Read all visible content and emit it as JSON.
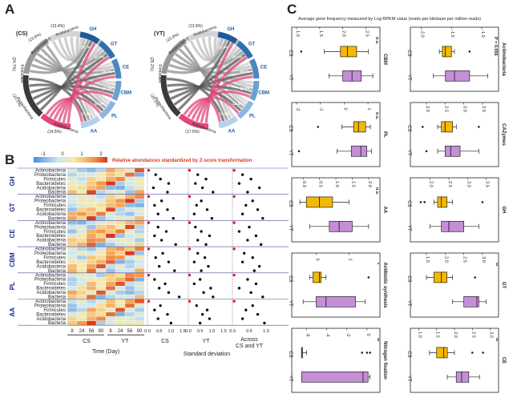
{
  "panels": {
    "a": "A",
    "b": "B",
    "c": "C"
  },
  "panel_a": {
    "left": {
      "label": "(CS)",
      "outer_labels": [
        {
          "text": "(13.4%)"
        },
        {
          "text": "Acidobacteria"
        },
        {
          "text": "(23.8%)"
        },
        {
          "text": "Bacteroidetes"
        },
        {
          "text": "(24.7%)"
        },
        {
          "text": "Firmicutes"
        },
        {
          "text": "(22.5%)"
        },
        {
          "text": "Proteobacteria"
        },
        {
          "text": "(14.5%)"
        },
        {
          "text": "Actinobacteria"
        }
      ],
      "right_labels": [
        "GH",
        "GT",
        "CE",
        "CBM",
        "PL",
        "AA"
      ],
      "chord_pcts": [
        "19.7%",
        "12.9%",
        "19.5%",
        "18.3%",
        "14.0%",
        "17.0%"
      ]
    },
    "right": {
      "label": "(YT)",
      "outer_labels": [
        {
          "text": "(13.9%)"
        },
        {
          "text": "Acidobacteria"
        },
        {
          "text": "(22.8%)"
        },
        {
          "text": "Bacteroidetes"
        },
        {
          "text": "(25.2%)"
        },
        {
          "text": "Firmicutes"
        },
        {
          "text": "(20.5%)"
        },
        {
          "text": "Proteobacteria"
        },
        {
          "text": "(17.5%)"
        },
        {
          "text": "Actinobacteria"
        }
      ],
      "right_labels": [
        "GH",
        "GT",
        "CE",
        "CBM",
        "PL",
        "AA"
      ],
      "chord_pcts": [
        "21.0%",
        "15.1%",
        "18.6%",
        "16.0%",
        "12.4%",
        "14.3%"
      ]
    }
  },
  "panel_b": {
    "legend_title": "Relative abundances standardized by Z-score transformation",
    "legend_ticks": [
      "-1",
      "0",
      "1",
      "2"
    ],
    "groups": [
      "GH",
      "GT",
      "CE",
      "CBM",
      "PL",
      "AA"
    ],
    "taxa": [
      "Actinobacteria",
      "Proteobacteria",
      "Firmicutes",
      "Bacteroidetes",
      "Acidobacteria",
      "Bacteria"
    ],
    "day_ticks": [
      "8",
      "24",
      "56",
      "90",
      "8",
      "24",
      "56",
      "90"
    ],
    "condition_labels": [
      "CS",
      "YT"
    ],
    "time_axis_label": "Time (Day)",
    "sd_column_labels": [
      "CS",
      "YT",
      "Across\nCS and YT"
    ],
    "sd_ticks": [
      [
        "0.0",
        "0.5",
        "1.0",
        "1.5"
      ],
      [
        "0.0",
        "0.5",
        "1.0",
        "1.5"
      ],
      [
        "0.0",
        "0.5",
        "1.0"
      ]
    ],
    "sd_axis_label": "Standard deviation",
    "heatmap_z": [
      [
        0.2,
        -0.3,
        -0.5,
        -0.2,
        1.2,
        0.8,
        0.4,
        1.8
      ],
      [
        -0.6,
        -0.2,
        0.2,
        0.1,
        0.6,
        0.9,
        0.7,
        1.6
      ],
      [
        0.1,
        0.4,
        0.3,
        -0.1,
        0.8,
        0.5,
        1.1,
        1.4
      ],
      [
        -0.3,
        0.2,
        0.5,
        0.4,
        0.2,
        0.9,
        1.3,
        2.0
      ],
      [
        -0.5,
        -0.6,
        -0.1,
        0.3,
        0.5,
        0.7,
        1.0,
        1.2
      ],
      [
        -0.2,
        0.1,
        0.3,
        -0.4,
        0.8,
        1.0,
        0.6,
        1.9
      ],
      [
        0.3,
        -0.2,
        -0.4,
        0.1,
        1.1,
        1.3,
        0.9,
        1.5
      ],
      [
        -0.4,
        0.0,
        0.4,
        0.2,
        0.6,
        1.2,
        0.8,
        2.1
      ],
      [
        0.1,
        0.5,
        0.2,
        -0.3,
        0.9,
        0.7,
        1.4,
        1.3
      ],
      [
        -0.6,
        -0.3,
        0.0,
        0.5,
        0.4,
        0.8,
        1.1,
        1.7
      ],
      [
        -0.1,
        0.3,
        -0.2,
        0.2,
        1.0,
        0.6,
        1.2,
        1.8
      ],
      [
        0.2,
        -0.4,
        0.1,
        0.0,
        0.7,
        1.1,
        0.5,
        1.6
      ]
    ],
    "sd_points": [
      [
        [
          0.05,
          0.35,
          0.55,
          0.9,
          0.25,
          0.85
        ],
        [
          0.05,
          0.4,
          0.75,
          0.3,
          0.6,
          1.05
        ],
        [
          0.05,
          0.3,
          0.55,
          0.2,
          0.8,
          0.45
        ]
      ],
      [
        [
          0.05,
          0.6,
          0.3,
          0.85,
          0.45,
          1.1
        ],
        [
          0.05,
          0.55,
          0.35,
          0.8,
          0.25,
          1.0
        ],
        [
          0.05,
          0.6,
          0.4,
          0.75,
          0.3,
          0.9
        ]
      ],
      [
        [
          0.05,
          0.45,
          0.8,
          0.3,
          0.6,
          1.2
        ],
        [
          0.05,
          0.3,
          0.55,
          0.9,
          0.4,
          0.75
        ],
        [
          0.05,
          0.5,
          0.2,
          0.7,
          0.45,
          0.85
        ]
      ],
      [
        [
          0.05,
          0.65,
          0.35,
          0.9,
          0.5,
          1.15
        ],
        [
          0.05,
          0.4,
          0.7,
          0.25,
          0.85,
          0.55
        ],
        [
          0.05,
          0.35,
          0.6,
          0.3,
          0.8,
          0.65
        ]
      ],
      [
        [
          0.05,
          0.3,
          0.75,
          0.5,
          0.9,
          1.35
        ],
        [
          0.05,
          0.5,
          0.25,
          0.95,
          0.65,
          1.05
        ],
        [
          0.05,
          0.45,
          0.7,
          0.2,
          0.55,
          0.9
        ]
      ],
      [
        [
          0.05,
          0.55,
          0.3,
          0.85,
          0.45,
          1.0
        ],
        [
          0.05,
          0.35,
          0.8,
          0.6,
          0.9,
          0.5
        ],
        [
          0.05,
          0.6,
          0.4,
          0.75,
          0.3,
          0.95
        ]
      ]
    ]
  },
  "panel_c": {
    "title": "Average gene frequency measured by Log RPKM value (reads per kilobase per million reads)",
    "box_labels": [
      "CS",
      "YT"
    ],
    "colors": {
      "cs": "#f5b800",
      "yt": "#c58fd8"
    },
    "plots": [
      {
        "name": "CBM",
        "sig": "n.s.",
        "ticks": [
          "1.0",
          "1.5",
          "2.0",
          "2.5"
        ],
        "min": 1.0,
        "max": 2.7,
        "cs": {
          "wl": 1.6,
          "q1": 1.95,
          "med": 2.1,
          "q3": 2.3,
          "wh": 2.55,
          "out": [
            1.1
          ]
        },
        "yt": {
          "wl": 1.7,
          "q1": 2.0,
          "med": 2.2,
          "q3": 2.4,
          "wh": 2.65,
          "out": []
        }
      },
      {
        "name": "Actinobacteria",
        "sig": "P = 0.056",
        "ticks": [
          "-2.0",
          "-1.5",
          "-1.0"
        ],
        "min": -2.1,
        "max": -0.8,
        "cs": {
          "wl": -1.7,
          "q1": -1.65,
          "med": -1.6,
          "q3": -1.5,
          "wh": -1.45,
          "out": [
            -1.2
          ]
        },
        "yt": {
          "wl": -1.8,
          "q1": -1.6,
          "med": -1.45,
          "q3": -1.2,
          "wh": -0.9,
          "out": []
        }
      },
      {
        "name": "PL",
        "sig": "n.s.",
        "ticks": [
          "-2",
          "-1",
          "0",
          "1"
        ],
        "min": -2.0,
        "max": 1.3,
        "cs": {
          "wl": -0.1,
          "q1": 0.4,
          "med": 0.6,
          "q3": 0.9,
          "wh": 1.1,
          "out": [
            -1.1
          ]
        },
        "yt": {
          "wl": -0.3,
          "q1": 0.3,
          "med": 0.7,
          "q3": 0.95,
          "wh": 1.15,
          "out": [
            -1.9
          ]
        }
      },
      {
        "name": "CAZymes",
        "sig": "",
        "ticks": [
          "2.0",
          "2.5",
          "3.0",
          "3.5"
        ],
        "min": 1.7,
        "max": 3.8,
        "cs": {
          "wl": 2.3,
          "q1": 2.4,
          "med": 2.5,
          "q3": 2.7,
          "wh": 2.8,
          "out": [
            1.9,
            3.4
          ]
        },
        "yt": {
          "wl": 2.3,
          "q1": 2.5,
          "med": 2.65,
          "q3": 2.9,
          "wh": 3.4,
          "out": [
            2.0
          ]
        }
      },
      {
        "name": "AA",
        "sig": "n.s.",
        "ticks": [
          "0.0",
          "0.5",
          "1.0",
          "1.5",
          "2.0"
        ],
        "min": -0.2,
        "max": 2.2,
        "cs": {
          "wl": -0.1,
          "q1": 0.1,
          "med": 0.5,
          "q3": 0.9,
          "wh": 1.4,
          "out": []
        },
        "yt": {
          "wl": 0.2,
          "q1": 0.8,
          "med": 1.1,
          "q3": 1.5,
          "wh": 2.0,
          "out": []
        }
      },
      {
        "name": "GH",
        "sig": "",
        "ticks": [
          "2.0",
          "2.5",
          "3.0",
          "3.5"
        ],
        "min": 1.6,
        "max": 3.7,
        "cs": {
          "wl": 2.1,
          "q1": 2.2,
          "med": 2.3,
          "q3": 2.45,
          "wh": 2.6,
          "out": [
            1.75,
            1.85,
            3.4
          ]
        },
        "yt": {
          "wl": 2.0,
          "q1": 2.3,
          "med": 2.5,
          "q3": 2.9,
          "wh": 3.3,
          "out": []
        }
      },
      {
        "name": "Antibiotic synthesis",
        "sig": "*",
        "ticks": [
          "0",
          "1"
        ],
        "min": -0.6,
        "max": 1.8,
        "cs": {
          "wl": -0.2,
          "q1": -0.1,
          "med": 0.1,
          "q3": 0.15,
          "wh": 0.3,
          "out": [
            1.6
          ]
        },
        "yt": {
          "wl": -0.4,
          "q1": 0.0,
          "med": 0.3,
          "q3": 1.2,
          "wh": 1.5,
          "out": []
        }
      },
      {
        "name": "GT",
        "sig": "**",
        "ticks": [
          "1.5",
          "2.0",
          "2.5",
          "3.0"
        ],
        "min": 1.2,
        "max": 3.3,
        "cs": {
          "wl": 1.5,
          "q1": 1.7,
          "med": 1.9,
          "q3": 2.05,
          "wh": 2.2,
          "out": [
            2.8
          ]
        },
        "yt": {
          "wl": 2.2,
          "q1": 2.5,
          "med": 2.85,
          "q3": 2.9,
          "wh": 3.1,
          "out": []
        }
      },
      {
        "name": "Nitrogen fixation",
        "sig": "**",
        "ticks": [
          "-6",
          "-4",
          "-2",
          "0"
        ],
        "min": -7.0,
        "max": 0.8,
        "cs": {
          "wl": -6.5,
          "q1": -6.5,
          "med": -6.5,
          "q3": -6.5,
          "wh": -6.0,
          "out": [
            -0.5,
            0.0,
            0.3
          ]
        },
        "yt": {
          "wl": -6.5,
          "q1": -6.5,
          "med": -0.4,
          "q3": 0.1,
          "wh": 0.3,
          "out": []
        }
      },
      {
        "name": "CE",
        "sig": "**",
        "ticks": [
          "1.0",
          "1.5",
          "2.0",
          "2.5",
          "3.0"
        ],
        "min": 0.9,
        "max": 3.1,
        "cs": {
          "wl": 1.3,
          "q1": 1.5,
          "med": 1.7,
          "q3": 1.8,
          "wh": 2.0,
          "out": [
            2.5,
            2.8
          ]
        },
        "yt": {
          "wl": 1.8,
          "q1": 2.05,
          "med": 2.2,
          "q3": 2.4,
          "wh": 2.7,
          "out": []
        }
      }
    ]
  }
}
